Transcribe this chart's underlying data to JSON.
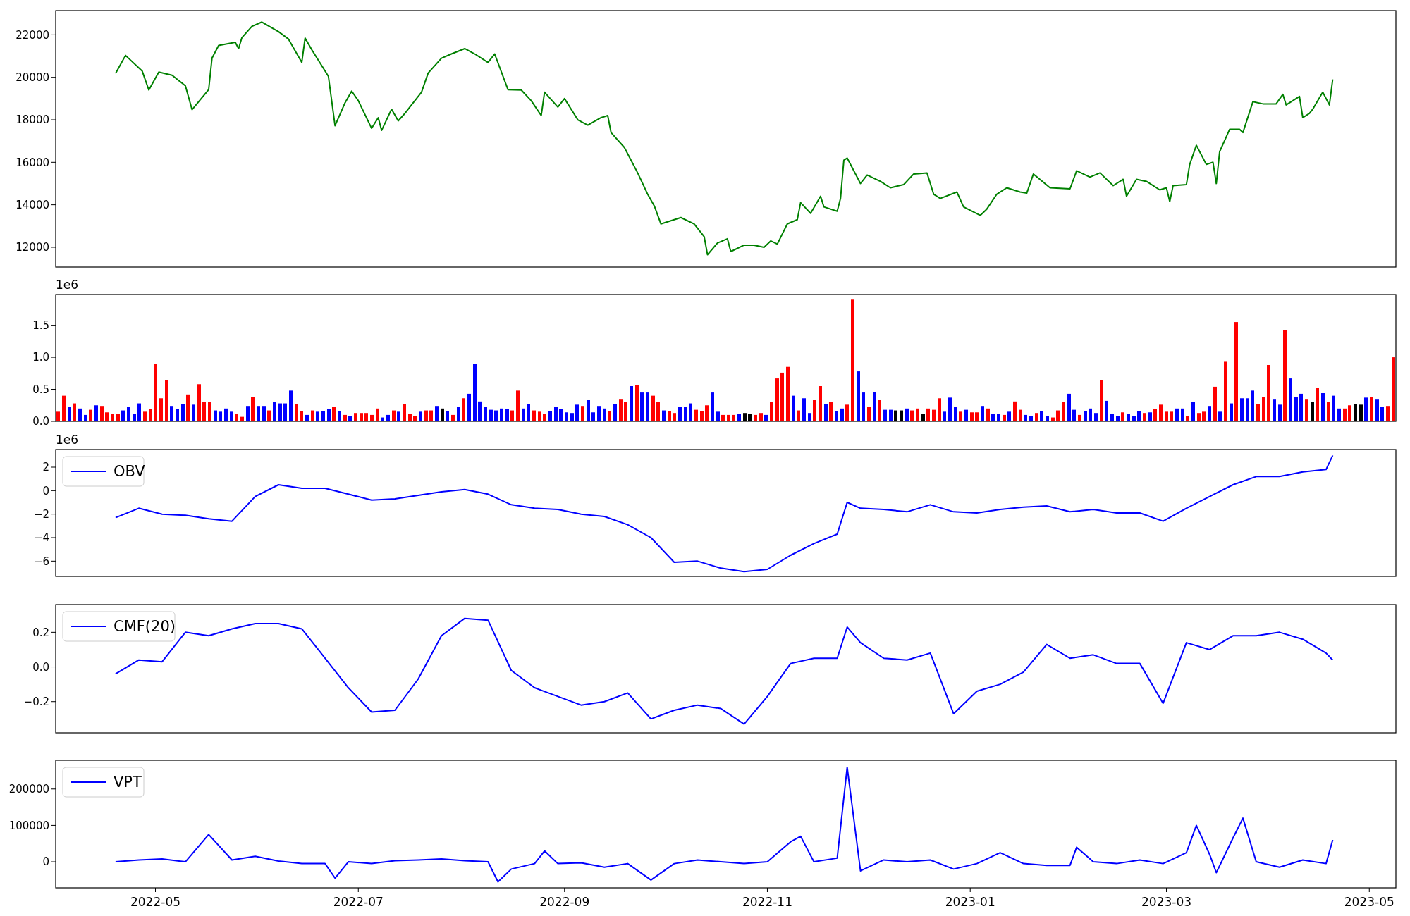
{
  "chart_data": [
    {
      "type": "line",
      "xlim": [
        "2022-04-01",
        "2023-05-09"
      ],
      "ylim": [
        11070,
        23140
      ],
      "yticks": [
        12000,
        14000,
        16000,
        18000,
        20000,
        22000
      ],
      "tick_labels": "y",
      "x": [
        "2022-04-19",
        "2022-04-22",
        "2022-04-27",
        "2022-04-29",
        "2022-05-02",
        "2022-05-06",
        "2022-05-10",
        "2022-05-12",
        "2022-05-17",
        "2022-05-18",
        "2022-05-20",
        "2022-05-25",
        "2022-05-26",
        "2022-05-27",
        "2022-05-30",
        "2022-06-02",
        "2022-06-07",
        "2022-06-10",
        "2022-06-14",
        "2022-06-15",
        "2022-06-17",
        "2022-06-22",
        "2022-06-24",
        "2022-06-27",
        "2022-06-29",
        "2022-07-01",
        "2022-07-05",
        "2022-07-07",
        "2022-07-08",
        "2022-07-11",
        "2022-07-13",
        "2022-07-15",
        "2022-07-20",
        "2022-07-22",
        "2022-07-26",
        "2022-07-29",
        "2022-08-02",
        "2022-08-05",
        "2022-08-09",
        "2022-08-11",
        "2022-08-15",
        "2022-08-19",
        "2022-08-22",
        "2022-08-25",
        "2022-08-26",
        "2022-08-30",
        "2022-09-01",
        "2022-09-05",
        "2022-09-08",
        "2022-09-12",
        "2022-09-14",
        "2022-09-15",
        "2022-09-19",
        "2022-09-23",
        "2022-09-26",
        "2022-09-28",
        "2022-09-30",
        "2022-10-03",
        "2022-10-06",
        "2022-10-10",
        "2022-10-13",
        "2022-10-14",
        "2022-10-17",
        "2022-10-20",
        "2022-10-21",
        "2022-10-25",
        "2022-10-28",
        "2022-10-31",
        "2022-11-02",
        "2022-11-04",
        "2022-11-07",
        "2022-11-10",
        "2022-11-11",
        "2022-11-14",
        "2022-11-17",
        "2022-11-18",
        "2022-11-22",
        "2022-11-23",
        "2022-11-24",
        "2022-11-25",
        "2022-11-29",
        "2022-12-01",
        "2022-12-05",
        "2022-12-08",
        "2022-12-12",
        "2022-12-15",
        "2022-12-19",
        "2022-12-21",
        "2022-12-23",
        "2022-12-28",
        "2022-12-30",
        "2023-01-04",
        "2023-01-06",
        "2023-01-09",
        "2023-01-12",
        "2023-01-16",
        "2023-01-18",
        "2023-01-20",
        "2023-01-25",
        "2023-01-31",
        "2023-02-02",
        "2023-02-06",
        "2023-02-09",
        "2023-02-13",
        "2023-02-16",
        "2023-02-17",
        "2023-02-20",
        "2023-02-23",
        "2023-02-27",
        "2023-03-01",
        "2023-03-02",
        "2023-03-03",
        "2023-03-07",
        "2023-03-08",
        "2023-03-10",
        "2023-03-13",
        "2023-03-15",
        "2023-03-16",
        "2023-03-17",
        "2023-03-20",
        "2023-03-23",
        "2023-03-24",
        "2023-03-27",
        "2023-03-30",
        "2023-04-03",
        "2023-04-05",
        "2023-04-06",
        "2023-04-10",
        "2023-04-11",
        "2023-04-13",
        "2023-04-14",
        "2023-04-17",
        "2023-04-19",
        "2023-04-20"
      ],
      "series": [
        {
          "color": "#008000",
          "values": [
            20180,
            21030,
            20300,
            19400,
            20250,
            20100,
            19600,
            18480,
            19420,
            20900,
            21500,
            21650,
            21350,
            21870,
            22400,
            22600,
            22150,
            21800,
            20700,
            21850,
            21300,
            20050,
            17720,
            18800,
            19350,
            18900,
            17600,
            18100,
            17500,
            18500,
            17950,
            18300,
            19300,
            20200,
            20900,
            21100,
            21350,
            21100,
            20700,
            21100,
            19420,
            19400,
            18900,
            18200,
            19300,
            18600,
            19000,
            18000,
            17750,
            18100,
            18200,
            17400,
            16700,
            15500,
            14500,
            13950,
            13100,
            13250,
            13400,
            13100,
            12500,
            11650,
            12200,
            12400,
            11800,
            12100,
            12100,
            12000,
            12300,
            12150,
            13100,
            13300,
            14100,
            13600,
            14400,
            13900,
            13700,
            14300,
            16100,
            16200,
            15000,
            15400,
            15100,
            14800,
            14950,
            15450,
            15500,
            14500,
            14300,
            14600,
            13900,
            13500,
            13800,
            14500,
            14800,
            14600,
            14550,
            15450,
            14800,
            14750,
            15600,
            15300,
            15500,
            14900,
            15200,
            14400,
            15200,
            15100,
            14700,
            14800,
            14150,
            14900,
            14950,
            15900,
            16800,
            15900,
            16000,
            15000,
            16500,
            17550,
            17550,
            17400,
            18850,
            18750,
            18750,
            19200,
            18700,
            19100,
            18100,
            18300,
            18500,
            19300,
            18700,
            19900
          ]
        }
      ]
    },
    {
      "type": "bar",
      "ylim": [
        0,
        1.98
      ],
      "yticks": [
        {
          "value": 0,
          "label": "0.0"
        },
        {
          "value": 0.5,
          "label": "0.5"
        },
        {
          "value": 1,
          "label": "1.0"
        },
        {
          "value": 1.5,
          "label": "1.5"
        }
      ],
      "tick_labels": "y",
      "annotations": [
        "1e6"
      ],
      "categories": [
        null,
        null,
        null,
        null,
        null,
        null,
        null,
        null,
        null,
        null,
        null,
        null,
        null,
        null,
        null,
        null,
        null,
        null,
        null,
        null,
        null,
        null,
        null,
        null,
        null,
        null,
        null,
        null,
        null,
        null,
        null,
        null,
        null,
        null,
        null,
        null,
        null,
        null,
        null,
        null,
        null,
        null,
        null,
        null,
        null,
        null,
        null,
        null,
        null,
        null,
        null,
        null,
        null,
        null,
        null,
        null,
        null,
        null,
        null,
        null,
        null,
        null,
        null,
        null,
        null,
        null,
        null,
        null,
        null,
        null,
        null,
        null,
        null,
        null,
        null,
        null,
        null,
        null,
        null,
        null,
        null,
        null,
        null,
        null,
        null,
        null,
        null,
        null,
        null,
        null,
        null,
        null,
        null,
        null,
        null,
        null,
        null,
        null,
        null,
        null,
        null,
        null,
        null,
        null,
        null,
        null,
        null,
        null,
        null,
        null,
        null,
        null,
        null,
        null,
        null,
        null,
        null,
        null,
        null,
        null,
        null,
        null,
        null,
        null,
        null,
        null,
        null,
        null,
        null,
        null,
        null,
        null,
        null,
        null,
        null,
        null,
        null,
        null,
        null,
        null,
        null,
        null,
        null,
        null,
        null,
        null,
        null,
        null,
        null,
        null,
        null,
        null,
        null,
        null,
        null,
        null,
        null,
        null,
        null,
        null,
        null,
        null,
        null,
        null,
        null,
        null,
        null,
        null,
        null,
        null,
        null,
        null,
        null,
        null,
        null,
        null,
        null,
        null,
        null,
        null,
        null,
        null,
        null,
        null,
        null,
        null,
        null,
        null,
        null,
        null,
        null,
        null,
        null,
        null,
        null,
        null,
        null,
        null,
        null,
        null,
        null,
        null,
        null,
        null,
        null,
        null,
        null,
        null,
        null,
        null,
        null,
        null,
        null,
        null,
        null,
        null,
        null,
        null,
        null,
        null,
        null,
        null,
        null,
        null,
        null,
        null,
        null,
        null,
        null,
        null,
        null,
        null,
        null,
        null,
        null,
        null,
        null,
        null,
        null,
        null,
        null,
        null,
        null,
        null,
        null,
        null,
        null,
        null
      ],
      "values": [
        0.15,
        0.4,
        0.22,
        0.28,
        0.2,
        0.1,
        0.18,
        0.25,
        0.24,
        0.14,
        0.12,
        0.12,
        0.17,
        0.23,
        0.11,
        0.28,
        0.15,
        0.19,
        0.9,
        0.36,
        0.64,
        0.24,
        0.19,
        0.27,
        0.42,
        0.26,
        0.58,
        0.3,
        0.3,
        0.17,
        0.15,
        0.2,
        0.15,
        0.11,
        0.07,
        0.24,
        0.38,
        0.24,
        0.24,
        0.17,
        0.3,
        0.28,
        0.28,
        0.48,
        0.27,
        0.16,
        0.1,
        0.17,
        0.15,
        0.16,
        0.19,
        0.22,
        0.16,
        0.1,
        0.08,
        0.13,
        0.13,
        0.13,
        0.1,
        0.2,
        0.06,
        0.1,
        0.17,
        0.15,
        0.27,
        0.11,
        0.08,
        0.15,
        0.17,
        0.17,
        0.24,
        0.2,
        0.16,
        0.1,
        0.23,
        0.36,
        0.43,
        0.9,
        0.31,
        0.22,
        0.18,
        0.17,
        0.2,
        0.19,
        0.17,
        0.48,
        0.2,
        0.27,
        0.17,
        0.15,
        0.12,
        0.16,
        0.22,
        0.19,
        0.14,
        0.13,
        0.26,
        0.24,
        0.34,
        0.14,
        0.24,
        0.2,
        0.16,
        0.27,
        0.35,
        0.3,
        0.55,
        0.57,
        0.45,
        0.45,
        0.4,
        0.3,
        0.17,
        0.16,
        0.13,
        0.22,
        0.22,
        0.28,
        0.18,
        0.16,
        0.25,
        0.45,
        0.15,
        0.1,
        0.1,
        0.1,
        0.12,
        0.13,
        0.12,
        0.1,
        0.13,
        0.1,
        0.3,
        0.67,
        0.76,
        0.85,
        0.4,
        0.17,
        0.36,
        0.13,
        0.33,
        0.55,
        0.27,
        0.3,
        0.16,
        0.2,
        0.26,
        1.9,
        0.78,
        0.45,
        0.22,
        0.46,
        0.33,
        0.18,
        0.18,
        0.17,
        0.17,
        0.2,
        0.17,
        0.2,
        0.12,
        0.2,
        0.18,
        0.36,
        0.15,
        0.37,
        0.22,
        0.15,
        0.18,
        0.14,
        0.14,
        0.24,
        0.2,
        0.12,
        0.12,
        0.1,
        0.15,
        0.31,
        0.18,
        0.1,
        0.08,
        0.13,
        0.16,
        0.08,
        0.06,
        0.17,
        0.3,
        0.43,
        0.18,
        0.1,
        0.16,
        0.2,
        0.13,
        0.64,
        0.32,
        0.12,
        0.08,
        0.14,
        0.12,
        0.08,
        0.16,
        0.13,
        0.14,
        0.19,
        0.26,
        0.15,
        0.15,
        0.2,
        0.2,
        0.08,
        0.3,
        0.13,
        0.15,
        0.24,
        0.54,
        0.15,
        0.93,
        0.28,
        1.55,
        0.36,
        0.36,
        0.48,
        0.27,
        0.38,
        0.88,
        0.35,
        0.26,
        1.43,
        0.67,
        0.38,
        0.43,
        0.35,
        0.3,
        0.52,
        0.44,
        0.3,
        0.4,
        0.2,
        0.2,
        0.25,
        0.27,
        0.26,
        0.37,
        0.38,
        0.35,
        0.23,
        0.24,
        1.0
      ],
      "colors": [
        "#ff0000",
        "#ff0000",
        "#0000ff",
        "#ff0000",
        "#0000ff",
        "#0000ff",
        "#ff0000",
        "#0000ff",
        "#ff0000",
        "#ff0000",
        "#ff0000",
        "#ff0000",
        "#0000ff",
        "#0000ff",
        "#0000ff",
        "#0000ff",
        "#ff0000",
        "#ff0000",
        "#ff0000",
        "#ff0000",
        "#ff0000",
        "#0000ff",
        "#0000ff",
        "#0000ff",
        "#ff0000",
        "#0000ff",
        "#ff0000",
        "#ff0000",
        "#ff0000",
        "#0000ff",
        "#0000ff",
        "#0000ff",
        "#0000ff",
        "#ff0000",
        "#ff0000",
        "#0000ff",
        "#ff0000",
        "#0000ff",
        "#0000ff",
        "#ff0000",
        "#0000ff",
        "#0000ff",
        "#0000ff",
        "#0000ff",
        "#ff0000",
        "#ff0000",
        "#0000ff",
        "#ff0000",
        "#0000ff",
        "#0000ff",
        "#0000ff",
        "#ff0000",
        "#0000ff",
        "#ff0000",
        "#0000ff",
        "#ff0000",
        "#ff0000",
        "#ff0000",
        "#ff0000",
        "#ff0000",
        "#0000ff",
        "#0000ff",
        "#ff0000",
        "#0000ff",
        "#ff0000",
        "#ff0000",
        "#ff0000",
        "#0000ff",
        "#ff0000",
        "#ff0000",
        "#0000ff",
        "#000000",
        "#0000ff",
        "#ff0000",
        "#0000ff",
        "#ff0000",
        "#0000ff",
        "#0000ff",
        "#0000ff",
        "#0000ff",
        "#0000ff",
        "#0000ff",
        "#0000ff",
        "#0000ff",
        "#ff0000",
        "#ff0000",
        "#0000ff",
        "#0000ff",
        "#ff0000",
        "#ff0000",
        "#ff0000",
        "#0000ff",
        "#0000ff",
        "#0000ff",
        "#0000ff",
        "#0000ff",
        "#0000ff",
        "#ff0000",
        "#0000ff",
        "#0000ff",
        "#0000ff",
        "#0000ff",
        "#ff0000",
        "#0000ff",
        "#ff0000",
        "#ff0000",
        "#0000ff",
        "#ff0000",
        "#0000ff",
        "#0000ff",
        "#ff0000",
        "#ff0000",
        "#0000ff",
        "#ff0000",
        "#ff0000",
        "#0000ff",
        "#0000ff",
        "#0000ff",
        "#ff0000",
        "#ff0000",
        "#ff0000",
        "#0000ff",
        "#0000ff",
        "#ff0000",
        "#ff0000",
        "#ff0000",
        "#0000ff",
        "#000000",
        "#000000",
        "#ff0000",
        "#ff0000",
        "#0000ff",
        "#ff0000",
        "#ff0000",
        "#ff0000",
        "#ff0000",
        "#0000ff",
        "#ff0000",
        "#0000ff",
        "#0000ff",
        "#ff0000",
        "#ff0000",
        "#0000ff",
        "#ff0000",
        "#0000ff",
        "#0000ff",
        "#ff0000",
        "#ff0000",
        "#0000ff",
        "#0000ff",
        "#ff0000",
        "#0000ff",
        "#ff0000",
        "#0000ff",
        "#0000ff",
        "#000000",
        "#000000",
        "#0000ff",
        "#ff0000",
        "#ff0000",
        "#000000",
        "#ff0000",
        "#ff0000",
        "#ff0000",
        "#0000ff",
        "#0000ff",
        "#0000ff",
        "#ff0000",
        "#0000ff",
        "#ff0000",
        "#ff0000",
        "#0000ff",
        "#ff0000",
        "#0000ff",
        "#0000ff",
        "#ff0000",
        "#0000ff",
        "#ff0000",
        "#ff0000",
        "#0000ff",
        "#0000ff",
        "#ff0000",
        "#0000ff",
        "#0000ff",
        "#ff0000",
        "#ff0000",
        "#ff0000",
        "#0000ff",
        "#0000ff",
        "#ff0000",
        "#0000ff",
        "#0000ff",
        "#0000ff",
        "#ff0000",
        "#0000ff",
        "#0000ff",
        "#0000ff",
        "#ff0000",
        "#0000ff",
        "#0000ff",
        "#0000ff",
        "#ff0000",
        "#0000ff",
        "#ff0000",
        "#ff0000",
        "#ff0000",
        "#ff0000",
        "#0000ff",
        "#0000ff",
        "#ff0000",
        "#0000ff",
        "#ff0000",
        "#ff0000",
        "#0000ff",
        "#ff0000",
        "#0000ff",
        "#ff0000",
        "#0000ff",
        "#ff0000",
        "#0000ff",
        "#0000ff",
        "#0000ff",
        "#ff0000",
        "#ff0000",
        "#ff0000",
        "#0000ff",
        "#0000ff",
        "#ff0000",
        "#0000ff",
        "#0000ff",
        "#0000ff",
        "#ff0000",
        "#000000",
        "#ff0000",
        "#0000ff",
        "#ff0000",
        "#0000ff",
        "#0000ff",
        "#ff0000",
        "#ff0000",
        "#000000",
        "#000000",
        "#0000ff",
        "#ff0000",
        "#0000ff",
        "#0000ff",
        "#ff0000",
        "#ff0000"
      ]
    },
    {
      "type": "line",
      "xlim": [
        "2022-04-01",
        "2023-05-09"
      ],
      "ylim": [
        -7.3,
        3.5
      ],
      "yticks": [
        {
          "value": -6,
          "label": "−6"
        },
        {
          "value": -4,
          "label": "−4"
        },
        {
          "value": -2,
          "label": "−2"
        },
        0,
        2
      ],
      "tick_labels": "y",
      "legend": "top left",
      "annotations": [
        "1e6"
      ],
      "x": [
        "2022-04-19",
        "2022-04-26",
        "2022-05-03",
        "2022-05-10",
        "2022-05-17",
        "2022-05-24",
        "2022-05-31",
        "2022-06-07",
        "2022-06-14",
        "2022-06-21",
        "2022-06-28",
        "2022-07-05",
        "2022-07-12",
        "2022-07-19",
        "2022-07-26",
        "2022-08-02",
        "2022-08-09",
        "2022-08-16",
        "2022-08-23",
        "2022-08-30",
        "2022-09-06",
        "2022-09-13",
        "2022-09-20",
        "2022-09-27",
        "2022-10-04",
        "2022-10-11",
        "2022-10-18",
        "2022-10-25",
        "2022-11-01",
        "2022-11-08",
        "2022-11-15",
        "2022-11-22",
        "2022-11-25",
        "2022-11-29",
        "2022-12-06",
        "2022-12-13",
        "2022-12-20",
        "2022-12-27",
        "2023-01-03",
        "2023-01-10",
        "2023-01-17",
        "2023-01-24",
        "2023-01-31",
        "2023-02-07",
        "2023-02-14",
        "2023-02-21",
        "2023-02-28",
        "2023-03-07",
        "2023-03-14",
        "2023-03-21",
        "2023-03-28",
        "2023-04-04",
        "2023-04-11",
        "2023-04-18",
        "2023-04-20"
      ],
      "series": [
        {
          "name": "OBV",
          "color": "#0000ff",
          "values": [
            -2.3,
            -1.5,
            -2.0,
            -2.1,
            -2.4,
            -2.6,
            -0.5,
            0.5,
            0.2,
            0.2,
            -0.3,
            -0.8,
            -0.7,
            -0.4,
            -0.1,
            0.1,
            -0.3,
            -1.2,
            -1.5,
            -1.6,
            -2.0,
            -2.2,
            -2.9,
            -4.0,
            -6.1,
            -6.0,
            -6.6,
            -6.9,
            -6.7,
            -5.5,
            -4.5,
            -3.7,
            -1.0,
            -1.5,
            -1.6,
            -1.8,
            -1.2,
            -1.8,
            -1.9,
            -1.6,
            -1.4,
            -1.3,
            -1.8,
            -1.6,
            -1.9,
            -1.9,
            -2.6,
            -1.5,
            -0.5,
            0.5,
            1.2,
            1.2,
            1.6,
            1.8,
            3.0
          ]
        }
      ]
    },
    {
      "type": "line",
      "xlim": [
        "2022-04-01",
        "2023-05-09"
      ],
      "ylim": [
        -0.38,
        0.36
      ],
      "yticks": [
        {
          "value": -0.2,
          "label": "−0.2"
        },
        {
          "value": 0,
          "label": "0.0"
        },
        0.2
      ],
      "tick_labels": "y",
      "legend": "top left",
      "x": [
        "2022-04-19",
        "2022-04-26",
        "2022-05-03",
        "2022-05-10",
        "2022-05-17",
        "2022-05-24",
        "2022-05-31",
        "2022-06-07",
        "2022-06-14",
        "2022-06-21",
        "2022-06-28",
        "2022-07-05",
        "2022-07-12",
        "2022-07-19",
        "2022-07-26",
        "2022-08-02",
        "2022-08-09",
        "2022-08-16",
        "2022-08-23",
        "2022-08-30",
        "2022-09-06",
        "2022-09-13",
        "2022-09-20",
        "2022-09-27",
        "2022-10-04",
        "2022-10-11",
        "2022-10-18",
        "2022-10-25",
        "2022-11-01",
        "2022-11-08",
        "2022-11-15",
        "2022-11-22",
        "2022-11-25",
        "2022-11-29",
        "2022-12-06",
        "2022-12-13",
        "2022-12-20",
        "2022-12-27",
        "2023-01-03",
        "2023-01-10",
        "2023-01-17",
        "2023-01-24",
        "2023-01-31",
        "2023-02-07",
        "2023-02-14",
        "2023-02-21",
        "2023-02-28",
        "2023-03-07",
        "2023-03-14",
        "2023-03-21",
        "2023-03-28",
        "2023-04-04",
        "2023-04-11",
        "2023-04-18",
        "2023-04-20"
      ],
      "series": [
        {
          "name": "CMF(20)",
          "color": "#0000ff",
          "values": [
            -0.04,
            0.04,
            0.03,
            0.2,
            0.18,
            0.22,
            0.25,
            0.25,
            0.22,
            0.05,
            -0.12,
            -0.26,
            -0.25,
            -0.07,
            0.18,
            0.28,
            0.27,
            -0.02,
            -0.12,
            -0.17,
            -0.22,
            -0.2,
            -0.15,
            -0.3,
            -0.25,
            -0.22,
            -0.24,
            -0.33,
            -0.17,
            0.02,
            0.05,
            0.05,
            0.23,
            0.14,
            0.05,
            0.04,
            0.08,
            -0.27,
            -0.14,
            -0.1,
            -0.03,
            0.13,
            0.05,
            0.07,
            0.02,
            0.02,
            -0.21,
            0.14,
            0.1,
            0.18,
            0.18,
            0.2,
            0.16,
            0.08,
            0.04
          ]
        }
      ]
    },
    {
      "type": "line",
      "xlim": [
        "2022-04-01",
        "2023-05-09"
      ],
      "ylim": [
        -71600,
        279000
      ],
      "yticks": [
        0,
        100000,
        200000
      ],
      "legend": "top left",
      "xticks": [
        {
          "value": "2022-05-01",
          "label": "2022-05"
        },
        {
          "value": "2022-07-01",
          "label": "2022-07"
        },
        {
          "value": "2022-09-01",
          "label": "2022-09"
        },
        {
          "value": "2022-11-01",
          "label": "2022-11"
        },
        {
          "value": "2023-01-01",
          "label": "2023-01"
        },
        {
          "value": "2023-03-01",
          "label": "2023-03"
        },
        {
          "value": "2023-05-01",
          "label": "2023-05"
        }
      ],
      "x": [
        "2022-04-19",
        "2022-04-26",
        "2022-05-03",
        "2022-05-10",
        "2022-05-17",
        "2022-05-24",
        "2022-05-31",
        "2022-06-07",
        "2022-06-14",
        "2022-06-21",
        "2022-06-24",
        "2022-06-28",
        "2022-07-05",
        "2022-07-12",
        "2022-07-19",
        "2022-07-26",
        "2022-08-02",
        "2022-08-09",
        "2022-08-12",
        "2022-08-16",
        "2022-08-23",
        "2022-08-26",
        "2022-08-30",
        "2022-09-06",
        "2022-09-13",
        "2022-09-20",
        "2022-09-27",
        "2022-10-04",
        "2022-10-11",
        "2022-10-18",
        "2022-10-25",
        "2022-11-01",
        "2022-11-08",
        "2022-11-11",
        "2022-11-15",
        "2022-11-22",
        "2022-11-25",
        "2022-11-29",
        "2022-12-06",
        "2022-12-13",
        "2022-12-20",
        "2022-12-27",
        "2023-01-03",
        "2023-01-10",
        "2023-01-17",
        "2023-01-24",
        "2023-01-31",
        "2023-02-02",
        "2023-02-07",
        "2023-02-14",
        "2023-02-21",
        "2023-02-28",
        "2023-03-07",
        "2023-03-10",
        "2023-03-14",
        "2023-03-16",
        "2023-03-21",
        "2023-03-24",
        "2023-03-28",
        "2023-04-04",
        "2023-04-11",
        "2023-04-18",
        "2023-04-20"
      ],
      "series": [
        {
          "name": "VPT",
          "color": "#0000ff",
          "values": [
            0,
            5000,
            8000,
            0,
            75000,
            5000,
            15000,
            2000,
            -5000,
            -5000,
            -45000,
            0,
            -5000,
            3000,
            5000,
            8000,
            3000,
            0,
            -55000,
            -20000,
            -5000,
            30000,
            -5000,
            -3000,
            -15000,
            -5000,
            -50000,
            -5000,
            5000,
            0,
            -5000,
            0,
            55000,
            70000,
            0,
            10000,
            260000,
            -25000,
            5000,
            0,
            5000,
            -20000,
            -5000,
            25000,
            -5000,
            -10000,
            -10000,
            40000,
            0,
            -5000,
            5000,
            -5000,
            25000,
            100000,
            20000,
            -30000,
            65000,
            120000,
            0,
            -15000,
            5000,
            -5000,
            60000
          ]
        }
      ]
    }
  ]
}
